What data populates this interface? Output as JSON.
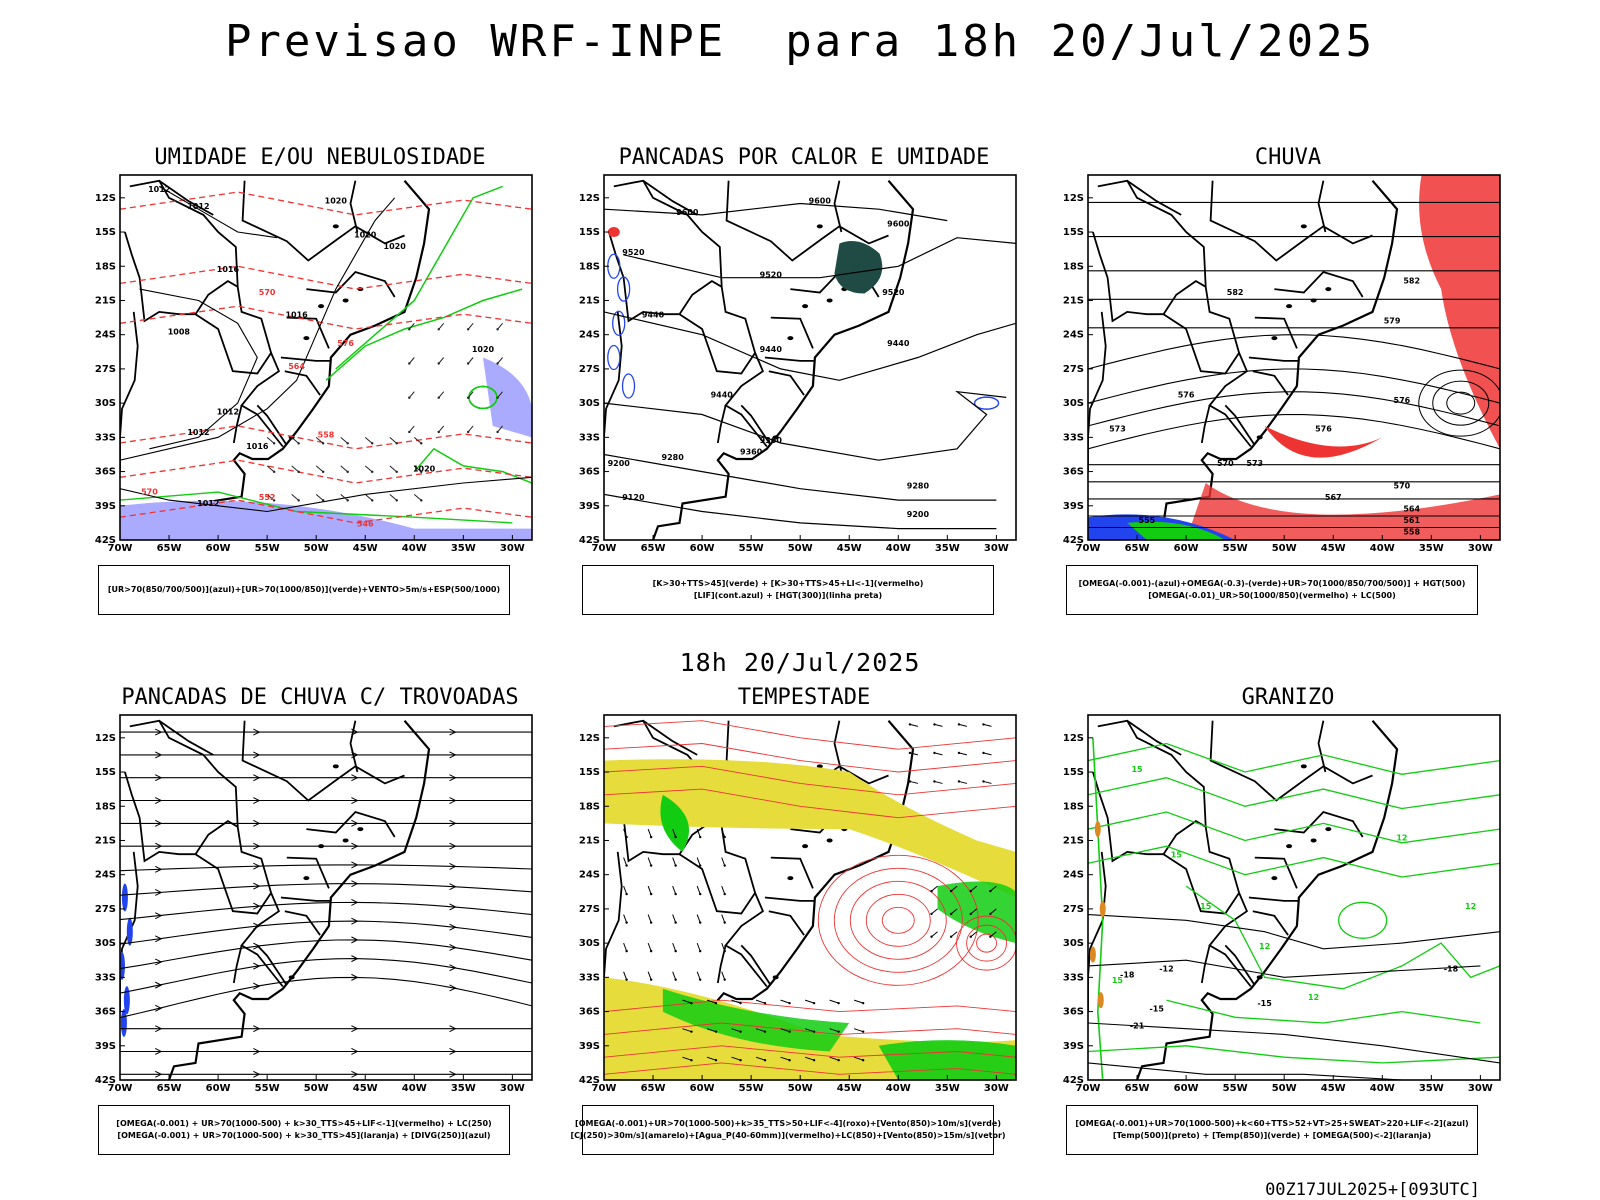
{
  "title": "Previsao WRF-INPE  para 18h 20/Jul/2025",
  "subtitle": "18h 20/Jul/2025",
  "footer": "00Z17JUL2025+[093UTC]",
  "axes": {
    "lat_ticks": [
      "12S",
      "15S",
      "18S",
      "21S",
      "24S",
      "27S",
      "30S",
      "33S",
      "36S",
      "39S",
      "42S"
    ],
    "lon_ticks": [
      "70W",
      "65W",
      "60W",
      "55W",
      "50W",
      "45W",
      "40W",
      "35W",
      "30W"
    ]
  },
  "panels": [
    {
      "id": "umidade",
      "title": "UMIDADE E/OU NEBULOSIDADE",
      "legend": [
        "[UR>70(850/700/500)](azul)+[UR>70(1000/850)](verde)+VENTO>5m/s+ESP(500/1000)"
      ],
      "contour_labels": [
        "1012",
        "1012",
        "1016",
        "1016",
        "1020",
        "1020",
        "1020",
        "1012",
        "1008",
        "1016",
        "1012",
        "1020",
        "1020",
        "1012",
        "570",
        "576",
        "564",
        "570",
        "558",
        "552",
        "546"
      ]
    },
    {
      "id": "pancadas-calor",
      "title": "PANCADAS POR CALOR E UMIDADE",
      "legend": [
        "[K>30+TTS>45](verde) + [K>30+TTS>45+LI<-1](vermelho)",
        "[LIF](cont.azul) + [HGT(300)](linha preta)"
      ],
      "contour_labels": [
        "9600",
        "9600",
        "9600",
        "9520",
        "9520",
        "9520",
        "9440",
        "9440",
        "9440",
        "9360",
        "9360",
        "9280",
        "9280",
        "9200",
        "9200",
        "9120",
        "9440"
      ]
    },
    {
      "id": "chuva",
      "title": "CHUVA",
      "legend": [
        "[OMEGA(-0.001)-(azul)+OMEGA(-0.3)-(verde)+UR>70(1000/850/700/500)] + HGT(500)",
        "[OMEGA(-0.01)_UR>50(1000/850)(vermelho) + LC(500)"
      ],
      "contour_labels": [
        "582",
        "582",
        "579",
        "576",
        "576",
        "576",
        "573",
        "573",
        "570",
        "570",
        "567",
        "564",
        "561",
        "558",
        "555"
      ]
    },
    {
      "id": "pancadas-trovoadas",
      "title": "PANCADAS DE CHUVA C/ TROVOADAS",
      "legend": [
        "[OMEGA(-0.001) + UR>70(1000-500) + k>30_TTS>45+LIF<-1](vermelho) + LC(250)",
        "[OMEGA(-0.001) + UR>70(1000-500) + k>30_TTS>45](laranja) + [DIVG(250)](azul)"
      ],
      "contour_labels": []
    },
    {
      "id": "tempestade",
      "title": "TEMPESTADE",
      "legend": [
        "[OMEGA(-0.001)+UR>70(1000-500)+k>35_TTS>50+LIF<-4](roxo)+[Vento(850)>10m/s](verde)",
        "[CJ(250)>30m/s](amarelo)+[Agua_P(40-60mm)](vermelho)+LC(850)+[Vento(850)>15m/s](vetor)"
      ],
      "contour_labels": []
    },
    {
      "id": "granizo",
      "title": "GRANIZO",
      "legend": [
        "[OMEGA(-0.001)+UR>70(1000-500)+k<60+TTS>52+VT>25+SWEAT>220+LIF<-2](azul)",
        "[Temp(500)](preto) + [Temp(850)](verde) + [OMEGA(500)<-2](laranja)"
      ],
      "contour_labels": [
        "15",
        "15",
        "15",
        "15",
        "12",
        "12",
        "12",
        "12",
        "-12",
        "-15",
        "-18",
        "-21",
        "-15",
        "-18"
      ]
    }
  ],
  "colors": {
    "azul": "#2244ee",
    "verde": "#11cc11",
    "vermelho": "#ee3333",
    "amarelo": "#e6dc3c",
    "roxo": "#aaaaff",
    "laranja": "#dd8822",
    "teal": "#1f4b44"
  }
}
